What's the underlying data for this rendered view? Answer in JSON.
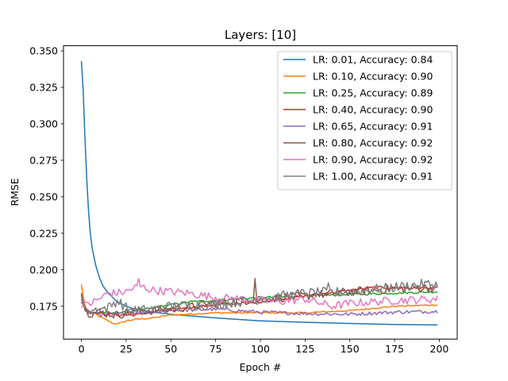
{
  "chart_data": {
    "type": "line",
    "title": "Layers: [10]",
    "xlabel": "Epoch #",
    "ylabel": "RMSE",
    "xlim": [
      -10,
      210
    ],
    "ylim": [
      0.1525,
      0.3535
    ],
    "xticks": [
      0,
      25,
      50,
      75,
      100,
      125,
      150,
      175,
      200
    ],
    "yticks": [
      0.175,
      0.2,
      0.225,
      0.25,
      0.275,
      0.3,
      0.325,
      0.35
    ],
    "ytick_labels": [
      "0.175",
      "0.200",
      "0.225",
      "0.250",
      "0.275",
      "0.300",
      "0.325",
      "0.350"
    ],
    "grid": false,
    "legend_position": "top-right",
    "series": [
      {
        "name": "LR: 0.01, Accuracy: 0.84",
        "color": "#1f77b4",
        "noise": 0,
        "points": [
          [
            0,
            0.343
          ],
          [
            1,
            0.323
          ],
          [
            2,
            0.29
          ],
          [
            3,
            0.262
          ],
          [
            4,
            0.24
          ],
          [
            5,
            0.225
          ],
          [
            6,
            0.215
          ],
          [
            8,
            0.203
          ],
          [
            10,
            0.195
          ],
          [
            12,
            0.189
          ],
          [
            15,
            0.184
          ],
          [
            20,
            0.178
          ],
          [
            25,
            0.175
          ],
          [
            30,
            0.173
          ],
          [
            40,
            0.171
          ],
          [
            50,
            0.1695
          ],
          [
            75,
            0.167
          ],
          [
            100,
            0.165
          ],
          [
            125,
            0.164
          ],
          [
            150,
            0.1632
          ],
          [
            175,
            0.1625
          ],
          [
            200,
            0.1622
          ]
        ]
      },
      {
        "name": "LR: 0.10, Accuracy: 0.90",
        "color": "#ff7f0e",
        "noise": 0.0005,
        "points": [
          [
            0,
            0.19
          ],
          [
            1,
            0.182
          ],
          [
            2,
            0.176
          ],
          [
            3,
            0.172
          ],
          [
            5,
            0.171
          ],
          [
            8,
            0.17
          ],
          [
            10,
            0.168
          ],
          [
            15,
            0.165
          ],
          [
            18,
            0.163
          ],
          [
            22,
            0.1635
          ],
          [
            25,
            0.165
          ],
          [
            30,
            0.166
          ],
          [
            40,
            0.167
          ],
          [
            50,
            0.169
          ],
          [
            75,
            0.1705
          ],
          [
            100,
            0.1705
          ],
          [
            125,
            0.1705
          ],
          [
            150,
            0.172
          ],
          [
            175,
            0.175
          ],
          [
            200,
            0.176
          ]
        ]
      },
      {
        "name": "LR: 0.25, Accuracy: 0.89",
        "color": "#2ca02c",
        "noise": 0.0007,
        "points": [
          [
            0,
            0.183
          ],
          [
            2,
            0.173
          ],
          [
            5,
            0.17
          ],
          [
            10,
            0.171
          ],
          [
            20,
            0.17
          ],
          [
            30,
            0.172
          ],
          [
            40,
            0.174
          ],
          [
            50,
            0.176
          ],
          [
            60,
            0.178
          ],
          [
            75,
            0.179
          ],
          [
            100,
            0.181
          ],
          [
            125,
            0.182
          ],
          [
            150,
            0.183
          ],
          [
            175,
            0.184
          ],
          [
            200,
            0.185
          ]
        ]
      },
      {
        "name": "LR: 0.40, Accuracy: 0.90",
        "color": "#d62728",
        "noise": 0.0008,
        "points": [
          [
            0,
            0.178
          ],
          [
            2,
            0.174
          ],
          [
            5,
            0.171
          ],
          [
            10,
            0.17
          ],
          [
            20,
            0.169
          ],
          [
            30,
            0.169
          ],
          [
            40,
            0.171
          ],
          [
            50,
            0.173
          ],
          [
            75,
            0.176
          ],
          [
            100,
            0.178
          ],
          [
            125,
            0.182
          ],
          [
            150,
            0.186
          ],
          [
            165,
            0.188
          ],
          [
            175,
            0.1875
          ],
          [
            200,
            0.1875
          ]
        ]
      },
      {
        "name": "LR: 0.65, Accuracy: 0.91",
        "color": "#9467bd",
        "noise": 0.0012,
        "points": [
          [
            0,
            0.18
          ],
          [
            2,
            0.173
          ],
          [
            5,
            0.171
          ],
          [
            10,
            0.169
          ],
          [
            20,
            0.17
          ],
          [
            30,
            0.17
          ],
          [
            40,
            0.171
          ],
          [
            50,
            0.172
          ],
          [
            75,
            0.173
          ],
          [
            100,
            0.171
          ],
          [
            125,
            0.17
          ],
          [
            150,
            0.1695
          ],
          [
            175,
            0.171
          ],
          [
            200,
            0.1715
          ]
        ]
      },
      {
        "name": "LR: 0.80, Accuracy: 0.92",
        "color": "#8c564b",
        "noise": 0.003,
        "spikes": [
          [
            97,
            0.194
          ],
          [
            131,
            0.184
          ]
        ],
        "points": [
          [
            0,
            0.184
          ],
          [
            2,
            0.172
          ],
          [
            5,
            0.17
          ],
          [
            10,
            0.171
          ],
          [
            20,
            0.169
          ],
          [
            30,
            0.172
          ],
          [
            40,
            0.172
          ],
          [
            50,
            0.173
          ],
          [
            75,
            0.177
          ],
          [
            100,
            0.18
          ],
          [
            125,
            0.182
          ],
          [
            150,
            0.185
          ],
          [
            175,
            0.187
          ],
          [
            200,
            0.188
          ]
        ]
      },
      {
        "name": "LR: 0.90, Accuracy: 0.92",
        "color": "#e377c2",
        "noise": 0.0028,
        "spikes": [
          [
            32,
            0.194
          ]
        ],
        "points": [
          [
            0,
            0.174
          ],
          [
            2,
            0.178
          ],
          [
            5,
            0.177
          ],
          [
            10,
            0.18
          ],
          [
            15,
            0.184
          ],
          [
            20,
            0.184
          ],
          [
            25,
            0.185
          ],
          [
            32,
            0.189
          ],
          [
            40,
            0.186
          ],
          [
            50,
            0.185
          ],
          [
            60,
            0.184
          ],
          [
            75,
            0.181
          ],
          [
            90,
            0.18
          ],
          [
            100,
            0.179
          ],
          [
            110,
            0.178
          ],
          [
            125,
            0.18
          ],
          [
            140,
            0.175
          ],
          [
            150,
            0.177
          ],
          [
            175,
            0.179
          ],
          [
            200,
            0.18
          ]
        ]
      },
      {
        "name": "LR: 1.00, Accuracy: 0.91",
        "color": "#7f7f7f",
        "noise": 0.0035,
        "spikes": [
          [
            138,
            0.191
          ]
        ],
        "points": [
          [
            0,
            0.182
          ],
          [
            2,
            0.173
          ],
          [
            5,
            0.172
          ],
          [
            10,
            0.173
          ],
          [
            15,
            0.174
          ],
          [
            20,
            0.179
          ],
          [
            25,
            0.174
          ],
          [
            30,
            0.172
          ],
          [
            40,
            0.173
          ],
          [
            50,
            0.175
          ],
          [
            75,
            0.176
          ],
          [
            100,
            0.18
          ],
          [
            125,
            0.184
          ],
          [
            150,
            0.185
          ],
          [
            175,
            0.188
          ],
          [
            190,
            0.19
          ],
          [
            200,
            0.19
          ]
        ]
      }
    ]
  }
}
